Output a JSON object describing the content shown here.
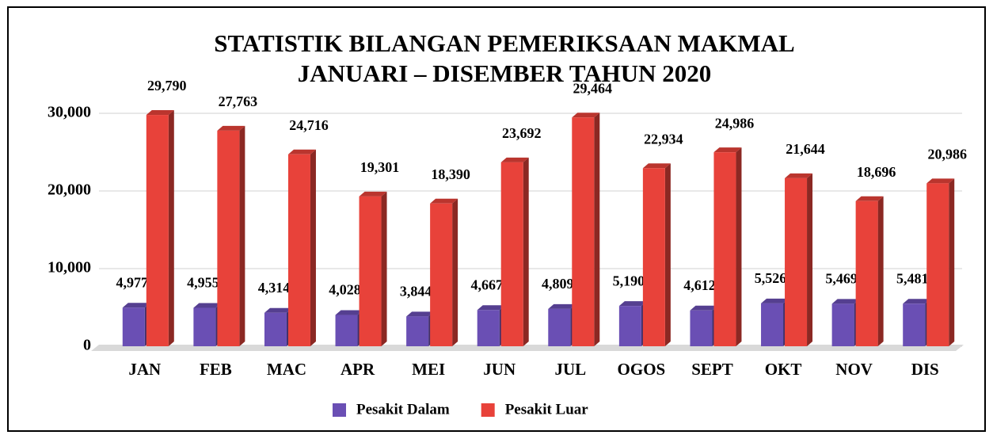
{
  "chart_data": {
    "type": "bar",
    "title": [
      "STATISTIK BILANGAN PEMERIKSAAN MAKMAL",
      "JANUARI – DISEMBER TAHUN 2020"
    ],
    "categories": [
      "JAN",
      "FEB",
      "MAC",
      "APR",
      "MEI",
      "JUN",
      "JUL",
      "OGOS",
      "SEPT",
      "OKT",
      "NOV",
      "DIS"
    ],
    "series": [
      {
        "name": "Pesakit Dalam",
        "color": "#6a4fb4",
        "values": [
          4977,
          4955,
          4314,
          4028,
          3844,
          4667,
          4809,
          5190,
          4612,
          5526,
          5469,
          5481
        ],
        "value_labels": [
          "4,977",
          "4,955",
          "4,314",
          "4,028",
          "3,844",
          "4,667",
          "4,809",
          "5,190",
          "4,612",
          "5,526",
          "5,469",
          "5,481"
        ]
      },
      {
        "name": "Pesakit Luar",
        "color": "#e8423a",
        "values": [
          29790,
          27763,
          24716,
          19301,
          18390,
          23692,
          29464,
          22934,
          24986,
          21644,
          18696,
          20986
        ],
        "value_labels": [
          "29,790",
          "27,763",
          "24,716",
          "19,301",
          "18,390",
          "23,692",
          "29,464",
          "22,934",
          "24,986",
          "21,644",
          "18,696",
          "20,986"
        ]
      }
    ],
    "ylim": [
      0,
      30000
    ],
    "yticks": [
      0,
      {
        "value": 10000,
        "label": "10,000"
      },
      {
        "value": 20000,
        "label": "20,000"
      },
      {
        "value": 30000,
        "label": "30,000"
      }
    ],
    "grid": true,
    "legend": "bottom"
  }
}
